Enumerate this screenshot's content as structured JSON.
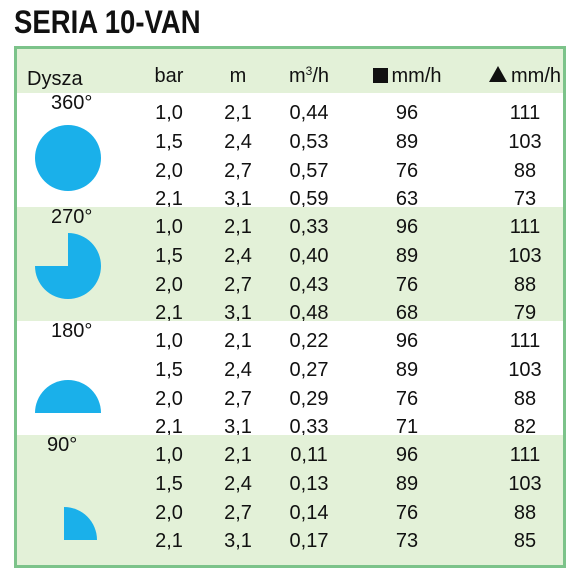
{
  "title": "SERIA 10-VAN",
  "headers": {
    "nozzle": "Dysza",
    "bar": "bar",
    "m": "m",
    "flow_base": "m",
    "flow_sup": "3",
    "flow_tail": "/h",
    "square_rate": "mm/h",
    "triangle_rate": "mm/h"
  },
  "colors": {
    "accent_fill": "#1ab0ea",
    "row_shade": "#e3f1d8",
    "border": "#7cc38a"
  },
  "sections": [
    {
      "angle": "360°",
      "shape": "full-circle",
      "rows": [
        {
          "bar": "1,0",
          "m": "2,1",
          "flow": "0,44",
          "square": "96",
          "triangle": "111"
        },
        {
          "bar": "1,5",
          "m": "2,4",
          "flow": "0,53",
          "square": "89",
          "triangle": "103"
        },
        {
          "bar": "2,0",
          "m": "2,7",
          "flow": "0,57",
          "square": "76",
          "triangle": "88"
        },
        {
          "bar": "2,1",
          "m": "3,1",
          "flow": "0,59",
          "square": "63",
          "triangle": "73"
        }
      ]
    },
    {
      "angle": "270°",
      "shape": "three-quarter-circle",
      "rows": [
        {
          "bar": "1,0",
          "m": "2,1",
          "flow": "0,33",
          "square": "96",
          "triangle": "111"
        },
        {
          "bar": "1,5",
          "m": "2,4",
          "flow": "0,40",
          "square": "89",
          "triangle": "103"
        },
        {
          "bar": "2,0",
          "m": "2,7",
          "flow": "0,43",
          "square": "76",
          "triangle": "88"
        },
        {
          "bar": "2,1",
          "m": "3,1",
          "flow": "0,48",
          "square": "68",
          "triangle": "79"
        }
      ]
    },
    {
      "angle": "180°",
      "shape": "half-circle",
      "rows": [
        {
          "bar": "1,0",
          "m": "2,1",
          "flow": "0,22",
          "square": "96",
          "triangle": "111"
        },
        {
          "bar": "1,5",
          "m": "2,4",
          "flow": "0,27",
          "square": "89",
          "triangle": "103"
        },
        {
          "bar": "2,0",
          "m": "2,7",
          "flow": "0,29",
          "square": "76",
          "triangle": "88"
        },
        {
          "bar": "2,1",
          "m": "3,1",
          "flow": "0,33",
          "square": "71",
          "triangle": "82"
        }
      ]
    },
    {
      "angle": "90°",
      "shape": "quarter-circle",
      "rows": [
        {
          "bar": "1,0",
          "m": "2,1",
          "flow": "0,11",
          "square": "96",
          "triangle": "111"
        },
        {
          "bar": "1,5",
          "m": "2,4",
          "flow": "0,13",
          "square": "89",
          "triangle": "103"
        },
        {
          "bar": "2,0",
          "m": "2,7",
          "flow": "0,14",
          "square": "76",
          "triangle": "88"
        },
        {
          "bar": "2,1",
          "m": "3,1",
          "flow": "0,17",
          "square": "73",
          "triangle": "85"
        }
      ]
    }
  ]
}
